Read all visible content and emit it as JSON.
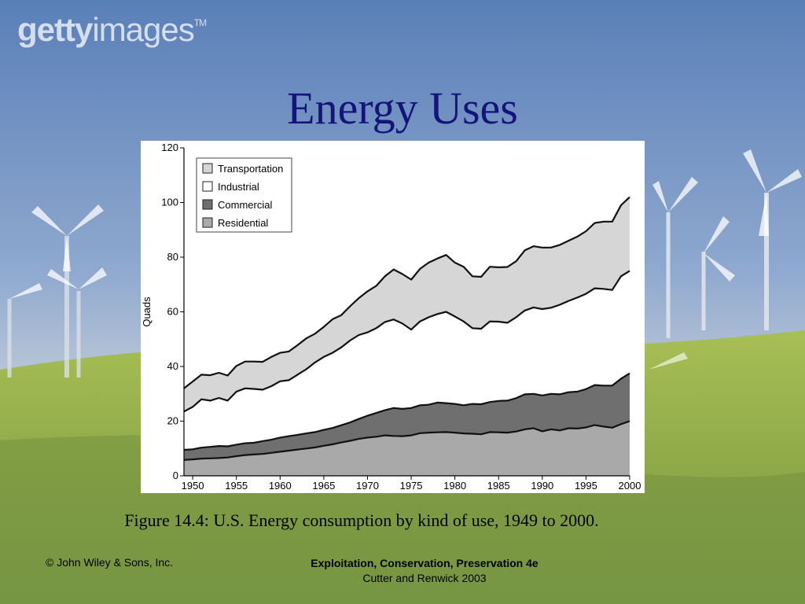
{
  "watermark": {
    "strong": "getty",
    "rest": "images",
    "tm": "TM"
  },
  "slide": {
    "title": "Energy Uses",
    "caption": "Figure 14.4: U.S. Energy consumption by kind of use, 1949 to 2000.",
    "footer_left": "© John Wiley & Sons, Inc.",
    "footer_book": "Exploitation, Conservation, Preservation 4e",
    "footer_authors": "Cutter and Renwick 2003"
  },
  "colors": {
    "residential": "#a9a9a9",
    "commercial": "#6f6f6f",
    "industrial": "#ffffff",
    "transportation": "#d6d6d6",
    "title": "#14147a"
  },
  "chart_data": {
    "type": "area",
    "stacked": true,
    "title": "",
    "xlabel": "",
    "ylabel": "Quads",
    "xlim": [
      1949,
      2000
    ],
    "ylim": [
      0,
      120
    ],
    "xticks": [
      1950,
      1955,
      1960,
      1965,
      1970,
      1975,
      1980,
      1985,
      1990,
      1995,
      2000
    ],
    "yticks": [
      0,
      20,
      40,
      60,
      80,
      100,
      120
    ],
    "legend_position": "top-left",
    "x": [
      1949,
      1950,
      1951,
      1952,
      1953,
      1954,
      1955,
      1956,
      1957,
      1958,
      1959,
      1960,
      1961,
      1962,
      1963,
      1964,
      1965,
      1966,
      1967,
      1968,
      1969,
      1970,
      1971,
      1972,
      1973,
      1974,
      1975,
      1976,
      1977,
      1978,
      1979,
      1980,
      1981,
      1982,
      1983,
      1984,
      1985,
      1986,
      1987,
      1988,
      1989,
      1990,
      1991,
      1992,
      1993,
      1994,
      1995,
      1996,
      1997,
      1998,
      1999,
      2000
    ],
    "series": [
      {
        "name": "Residential",
        "cumulative": [
          5.8,
          6.0,
          6.3,
          6.4,
          6.5,
          6.7,
          7.2,
          7.6,
          7.8,
          8.0,
          8.4,
          8.8,
          9.2,
          9.6,
          10.0,
          10.4,
          11.0,
          11.5,
          12.2,
          12.8,
          13.5,
          14.0,
          14.3,
          14.8,
          14.6,
          14.5,
          14.8,
          15.6,
          15.8,
          15.9,
          16.0,
          15.8,
          15.5,
          15.4,
          15.2,
          16.0,
          15.9,
          15.8,
          16.2,
          17.0,
          17.4,
          16.3,
          17.0,
          16.6,
          17.4,
          17.3,
          17.7,
          18.6,
          18.0,
          17.6,
          18.9,
          20.0
        ]
      },
      {
        "name": "Commercial",
        "cumulative": [
          9.5,
          9.7,
          10.3,
          10.6,
          10.9,
          10.8,
          11.4,
          11.9,
          12.1,
          12.7,
          13.2,
          14.0,
          14.5,
          15.0,
          15.5,
          16.0,
          16.8,
          17.5,
          18.5,
          19.5,
          20.8,
          22.0,
          23.0,
          24.0,
          24.8,
          24.5,
          24.8,
          25.8,
          26.0,
          26.8,
          26.6,
          26.3,
          25.8,
          26.3,
          26.2,
          27.0,
          27.4,
          27.5,
          28.4,
          29.8,
          30.0,
          29.4,
          30.0,
          29.8,
          30.6,
          30.8,
          31.7,
          33.2,
          33.0,
          33.0,
          35.5,
          37.5
        ]
      },
      {
        "name": "Industrial",
        "cumulative": [
          23.5,
          25.2,
          28.0,
          27.5,
          28.5,
          27.5,
          30.8,
          32.0,
          31.8,
          31.5,
          32.8,
          34.6,
          35.0,
          37.0,
          39.0,
          41.5,
          43.5,
          45.0,
          47.0,
          49.5,
          51.5,
          52.5,
          54.0,
          56.3,
          57.2,
          55.7,
          53.5,
          56.5,
          58.0,
          59.2,
          60.0,
          58.3,
          56.5,
          54.0,
          53.8,
          56.5,
          56.4,
          56.0,
          58.0,
          60.5,
          61.6,
          61.0,
          61.5,
          62.6,
          64.0,
          65.2,
          66.6,
          68.6,
          68.4,
          68.0,
          73.0,
          75.0
        ]
      },
      {
        "name": "Transportation",
        "cumulative": [
          32.0,
          34.5,
          37.0,
          36.8,
          37.7,
          36.7,
          40.2,
          41.8,
          41.8,
          41.7,
          43.5,
          45.0,
          45.5,
          47.8,
          50.3,
          52.0,
          54.5,
          57.3,
          58.8,
          62.0,
          65.0,
          67.5,
          69.5,
          73.0,
          75.5,
          73.8,
          71.8,
          75.7,
          78.0,
          79.5,
          80.8,
          78.0,
          76.5,
          73.0,
          72.8,
          76.5,
          76.3,
          76.4,
          78.5,
          82.5,
          84.0,
          83.5,
          83.5,
          84.5,
          86.0,
          87.5,
          89.5,
          92.5,
          93.0,
          93.0,
          99.0,
          102.0
        ]
      }
    ]
  }
}
